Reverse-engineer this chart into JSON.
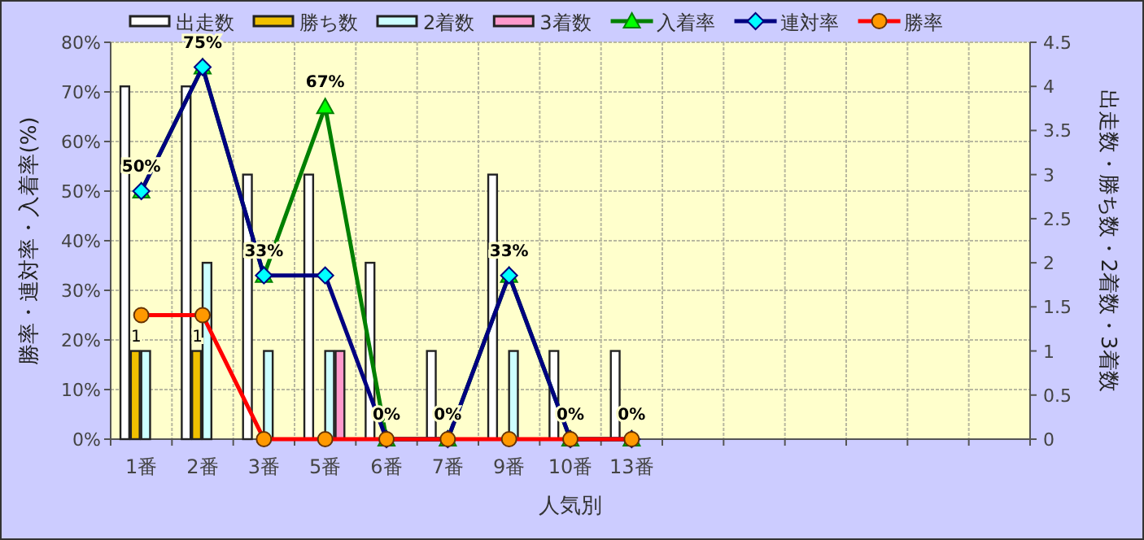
{
  "chart_data": {
    "type": "bar",
    "categories": [
      "1番",
      "2番",
      "3番",
      "5番",
      "6番",
      "7番",
      "9番",
      "10番",
      "13番",
      null,
      null,
      null,
      null,
      null,
      null
    ],
    "xlabel": "人気別",
    "ylabel": "勝率・連対率・入着率(%)",
    "y2label": "出走数・勝ち数・2着数・3着数",
    "ylim": [
      0,
      80
    ],
    "yticks": [
      {
        "value": 0,
        "label": "0%"
      },
      {
        "value": 10,
        "label": "10%"
      },
      {
        "value": 20,
        "label": "20%"
      },
      {
        "value": 30,
        "label": "30%"
      },
      {
        "value": 40,
        "label": "40%"
      },
      {
        "value": 50,
        "label": "50%"
      },
      {
        "value": 60,
        "label": "60%"
      },
      {
        "value": 70,
        "label": "70%"
      },
      {
        "value": 80,
        "label": "80%"
      }
    ],
    "y2lim": [
      0,
      4.5
    ],
    "y2ticks": [
      0,
      0.5,
      1,
      1.5,
      2,
      2.5,
      3,
      3.5,
      4,
      4.5
    ],
    "grid": true,
    "legend": "top",
    "series": [
      {
        "name": "出走数",
        "axis": "y2",
        "color": "#ffffff",
        "values": [
          4,
          4,
          3,
          3,
          2,
          1,
          3,
          1,
          1,
          null,
          null,
          null,
          null,
          null,
          null
        ]
      },
      {
        "name": "勝ち数",
        "axis": "y2",
        "color": "#f0c000",
        "values": [
          1,
          1,
          0,
          0,
          0,
          0,
          0,
          0,
          0,
          null,
          null,
          null,
          null,
          null,
          null
        ],
        "value_labels": [
          "1",
          "1",
          null,
          null,
          null,
          null,
          null,
          null,
          null,
          null,
          null,
          null,
          null,
          null,
          null
        ]
      },
      {
        "name": "2着数",
        "axis": "y2",
        "color": "#ccffff",
        "values": [
          1,
          2,
          1,
          1,
          0,
          0,
          1,
          0,
          0,
          null,
          null,
          null,
          null,
          null,
          null
        ]
      },
      {
        "name": "3着数",
        "axis": "y2",
        "color": "#ff99cc",
        "values": [
          0,
          0,
          0,
          1,
          0,
          0,
          0,
          0,
          0,
          null,
          null,
          null,
          null,
          null,
          null
        ]
      },
      {
        "name": "入着率",
        "type": "line",
        "axis": "y",
        "color": "#008000",
        "marker": "triangle",
        "values": [
          50,
          75,
          33,
          67,
          0,
          0,
          33,
          0,
          0,
          null,
          null,
          null,
          null,
          null,
          null
        ],
        "value_labels": [
          "50%",
          "75%",
          "33%",
          "67%",
          "0%",
          "0%",
          "33%",
          "0%",
          "0%",
          null,
          null,
          null,
          null,
          null,
          null
        ]
      },
      {
        "name": "連対率",
        "type": "line",
        "axis": "y",
        "color": "#000080",
        "marker": "diamond",
        "values": [
          50,
          75,
          33,
          33,
          0,
          0,
          33,
          0,
          0,
          null,
          null,
          null,
          null,
          null,
          null
        ]
      },
      {
        "name": "勝率",
        "type": "line",
        "axis": "y",
        "color": "#ff0000",
        "marker": "circle",
        "values": [
          25,
          25,
          0,
          0,
          0,
          0,
          0,
          0,
          0,
          null,
          null,
          null,
          null,
          null,
          null
        ]
      }
    ]
  }
}
